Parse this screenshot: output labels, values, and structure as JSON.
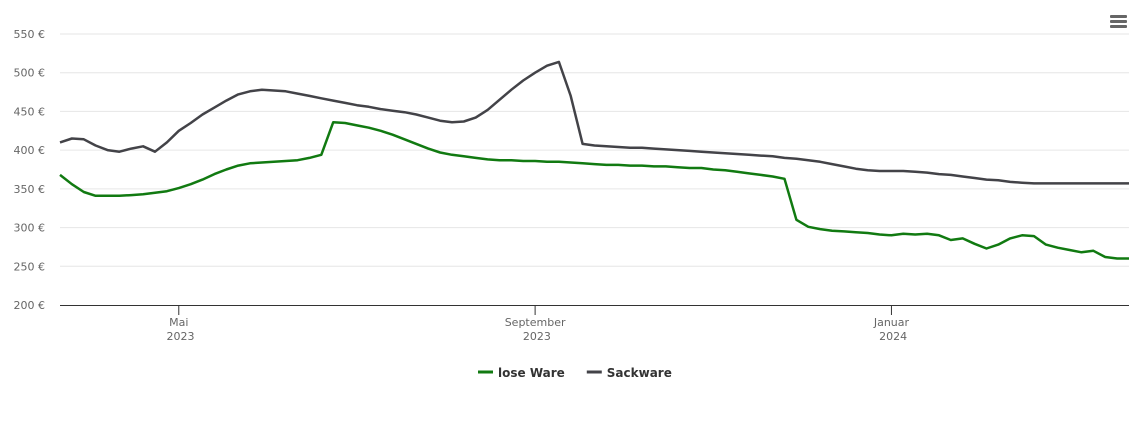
{
  "chart_data": {
    "type": "line",
    "categories": [
      null,
      null,
      null,
      null,
      null,
      null,
      null,
      null,
      null,
      null,
      "Mai 2023",
      null,
      null,
      null,
      null,
      null,
      null,
      null,
      null,
      null,
      null,
      null,
      null,
      null,
      null,
      null,
      null,
      null,
      null,
      null,
      null,
      null,
      null,
      null,
      null,
      null,
      null,
      null,
      null,
      null,
      "September 2023",
      null,
      null,
      null,
      null,
      null,
      null,
      null,
      null,
      null,
      null,
      null,
      null,
      null,
      null,
      null,
      null,
      null,
      null,
      null,
      null,
      null,
      null,
      null,
      null,
      null,
      null,
      null,
      null,
      null,
      "Januar 2024",
      null,
      null,
      null,
      null,
      null,
      null,
      null,
      null,
      null,
      null,
      null,
      null,
      null,
      null,
      null,
      null,
      null,
      null,
      null,
      null
    ],
    "series": [
      {
        "name": "lose Ware",
        "color": "#117a11",
        "values": [
          368,
          356,
          346,
          341,
          341,
          341,
          342,
          343,
          345,
          347,
          351,
          356,
          362,
          369,
          375,
          380,
          383,
          384,
          385,
          386,
          387,
          390,
          394,
          436,
          435,
          432,
          429,
          425,
          420,
          414,
          408,
          402,
          397,
          394,
          392,
          390,
          388,
          387,
          387,
          386,
          386,
          385,
          385,
          384,
          383,
          382,
          381,
          381,
          380,
          380,
          379,
          379,
          378,
          377,
          377,
          375,
          374,
          372,
          370,
          368,
          366,
          363,
          310,
          301,
          298,
          296,
          295,
          294,
          293,
          291,
          290,
          292,
          291,
          292,
          290,
          284,
          286,
          279,
          273,
          278,
          286,
          290,
          289,
          278,
          274,
          271,
          268,
          270,
          262,
          260,
          260
        ]
      },
      {
        "name": "Sackware",
        "color": "#434348",
        "values": [
          410,
          415,
          414,
          406,
          400,
          398,
          402,
          405,
          398,
          410,
          425,
          435,
          446,
          455,
          464,
          472,
          476,
          478,
          477,
          476,
          473,
          470,
          467,
          464,
          461,
          458,
          456,
          453,
          451,
          449,
          446,
          442,
          438,
          436,
          437,
          442,
          452,
          465,
          478,
          490,
          500,
          509,
          514,
          470,
          408,
          406,
          405,
          404,
          403,
          403,
          402,
          401,
          400,
          399,
          398,
          397,
          396,
          395,
          394,
          393,
          392,
          390,
          389,
          387,
          385,
          382,
          379,
          376,
          374,
          373,
          373,
          373,
          372,
          371,
          369,
          368,
          366,
          364,
          362,
          361,
          359,
          358,
          357,
          357,
          357,
          357,
          357,
          357,
          357,
          357,
          357
        ]
      }
    ],
    "ylim": [
      200,
      550
    ],
    "yticks": [
      {
        "value": 200,
        "label": "200 €"
      },
      {
        "value": 250,
        "label": "250 €"
      },
      {
        "value": 300,
        "label": "300 €"
      },
      {
        "value": 350,
        "label": "350 €"
      },
      {
        "value": 400,
        "label": "400 €"
      },
      {
        "value": 450,
        "label": "450 €"
      },
      {
        "value": 500,
        "label": "500 €"
      },
      {
        "value": 550,
        "label": "550 €"
      }
    ],
    "grid": true
  }
}
